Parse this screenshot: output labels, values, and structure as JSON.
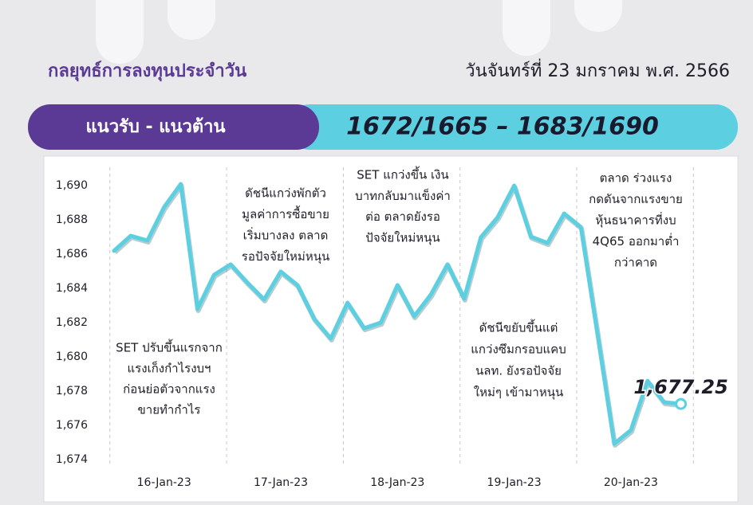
{
  "header": {
    "title": "กลยุทธ์การลงทุนประจำวัน",
    "date": "วันจันทร์ที่ 23 มกราคม พ.ศ. 2566",
    "banner_label": "แนวรับ - แนวต้าน",
    "banner_range": "1672/1665 – 1683/1690"
  },
  "chart_data": {
    "type": "line",
    "categories": [
      null,
      null,
      null,
      "16-Jan-23",
      null,
      null,
      null,
      null,
      null,
      null,
      "17-Jan-23",
      null,
      null,
      null,
      null,
      null,
      null,
      "18-Jan-23",
      null,
      null,
      null,
      null,
      null,
      null,
      "19-Jan-23",
      null,
      null,
      null,
      null,
      null,
      null,
      "20-Jan-23",
      null,
      null,
      null
    ],
    "values": [
      1686.19,
      1687.07,
      1686.79,
      1688.74,
      1690.09,
      1682.79,
      1684.79,
      1685.4,
      1684.33,
      1683.35,
      1684.98,
      1684.19,
      1682.23,
      1681.07,
      1683.16,
      1681.67,
      1682.0,
      1684.19,
      1682.37,
      1683.63,
      1685.4,
      1683.4,
      1686.98,
      1688.14,
      1690.0,
      1687.02,
      1686.65,
      1688.37,
      1687.58,
      1681.3,
      1674.93,
      1675.72,
      1678.6,
      1677.35,
      1677.25
    ],
    "value_labels": [
      null,
      null,
      null,
      null,
      null,
      null,
      null,
      null,
      null,
      null,
      null,
      null,
      null,
      null,
      null,
      null,
      null,
      null,
      null,
      null,
      null,
      null,
      null,
      null,
      null,
      null,
      null,
      null,
      null,
      null,
      null,
      null,
      null,
      null,
      "1,677.25"
    ],
    "color": "#5ccfe0",
    "ylim": [
      1674,
      1690
    ],
    "yticks": [
      {
        "value": 1674,
        "label": "1,674"
      },
      {
        "value": 1676,
        "label": "1,676"
      },
      {
        "value": 1678,
        "label": "1,678"
      },
      {
        "value": 1680,
        "label": "1,680"
      },
      {
        "value": 1682,
        "label": "1,682"
      },
      {
        "value": 1684,
        "label": "1,684"
      },
      {
        "value": 1686,
        "label": "1,686"
      },
      {
        "value": 1688,
        "label": "1,688"
      },
      {
        "value": 1690,
        "label": "1,690"
      }
    ],
    "annotations": [
      {
        "lines": [
          "SET ปรับขึ้นแรกจาก",
          "แรงเก็งกำไรงบฯ",
          "ก่อนย่อตัวจากแรง",
          "ขายทำกำไร"
        ]
      },
      {
        "lines": [
          "ดัชนีแกว่งพักตัว",
          "มูลค่าการซื้อขาย",
          "เริ่มบางลง ตลาด",
          "รอปัจจัยใหม่หนุน"
        ]
      },
      {
        "lines": [
          "SET แกว่งขึ้น เงิน",
          "บาทกลับมาแข็งค่า",
          "ต่อ ตลาดยังรอ",
          "ปัจจัยใหม่หนุน"
        ]
      },
      {
        "lines": [
          "ดัชนีขยับขึ้นแต่",
          "แกว่งซึมกรอบแคบ",
          "นลท. ยังรอปัจจัย",
          "ใหม่ๆ เข้ามาหนุน"
        ]
      },
      {
        "lines": [
          "ตลาด ร่วงแรง",
          "กดดันจากแรงขาย",
          "หุ้นธนาคารที่งบ",
          "4Q65 ออกมาต่ำ",
          "กว่าคาด"
        ]
      }
    ]
  }
}
